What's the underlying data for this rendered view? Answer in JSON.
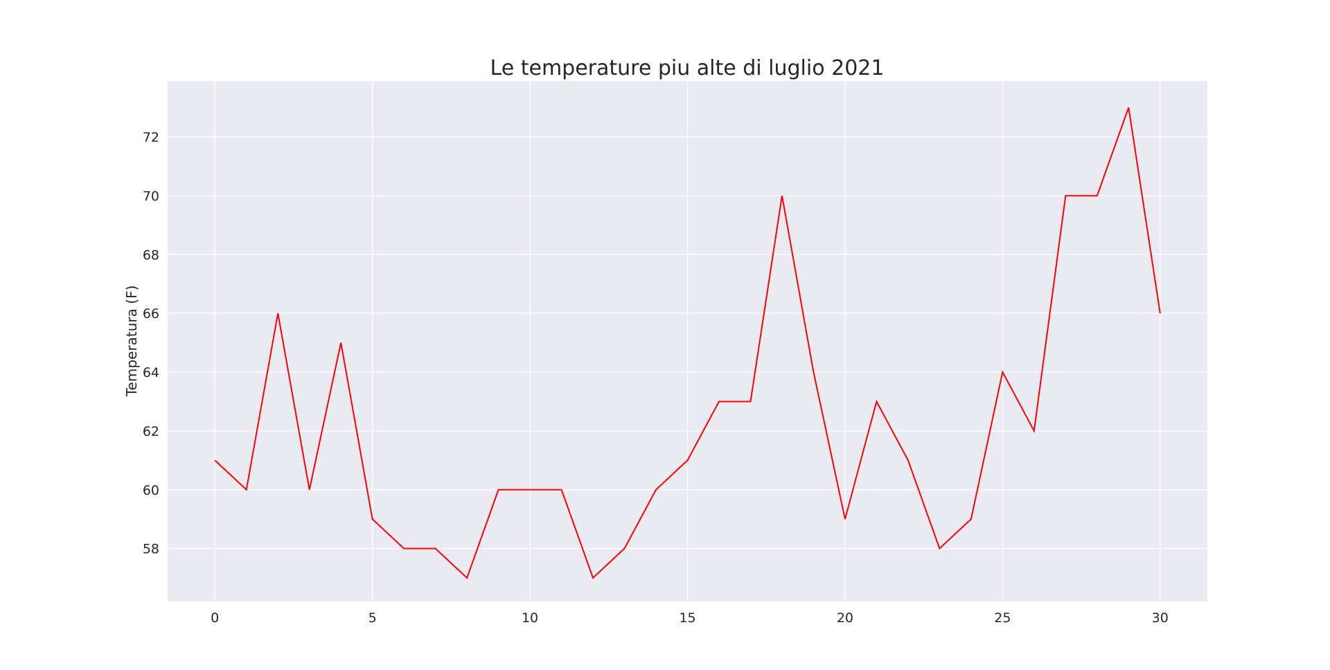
{
  "chart_data": {
    "type": "line",
    "title": "Le temperature piu alte di luglio 2021",
    "xlabel": "",
    "ylabel": "Temperatura (F)",
    "xlim": [
      -1.5,
      31.5
    ],
    "ylim": [
      56.2,
      73.9
    ],
    "xticks": [
      0,
      5,
      10,
      15,
      20,
      25,
      30
    ],
    "yticks": [
      58,
      60,
      62,
      64,
      66,
      68,
      70,
      72
    ],
    "grid": true,
    "legend": "none",
    "series": [
      {
        "color": "#ff0000",
        "x": [
          0,
          1,
          2,
          3,
          4,
          5,
          6,
          7,
          8,
          9,
          10,
          11,
          12,
          13,
          14,
          15,
          16,
          17,
          18,
          19,
          20,
          21,
          22,
          23,
          24,
          25,
          26,
          27,
          28,
          29,
          30
        ],
        "values": [
          61,
          60,
          66,
          60,
          65,
          59,
          58,
          58,
          57,
          60,
          60,
          60,
          57,
          58,
          60,
          61,
          63,
          63,
          70,
          64,
          59,
          63,
          61,
          58,
          59,
          64,
          62,
          70,
          70,
          73,
          66
        ]
      }
    ],
    "colors": {
      "plot_bg": "#eaeaf2",
      "grid": "#ffffff",
      "text": "#262626"
    }
  }
}
